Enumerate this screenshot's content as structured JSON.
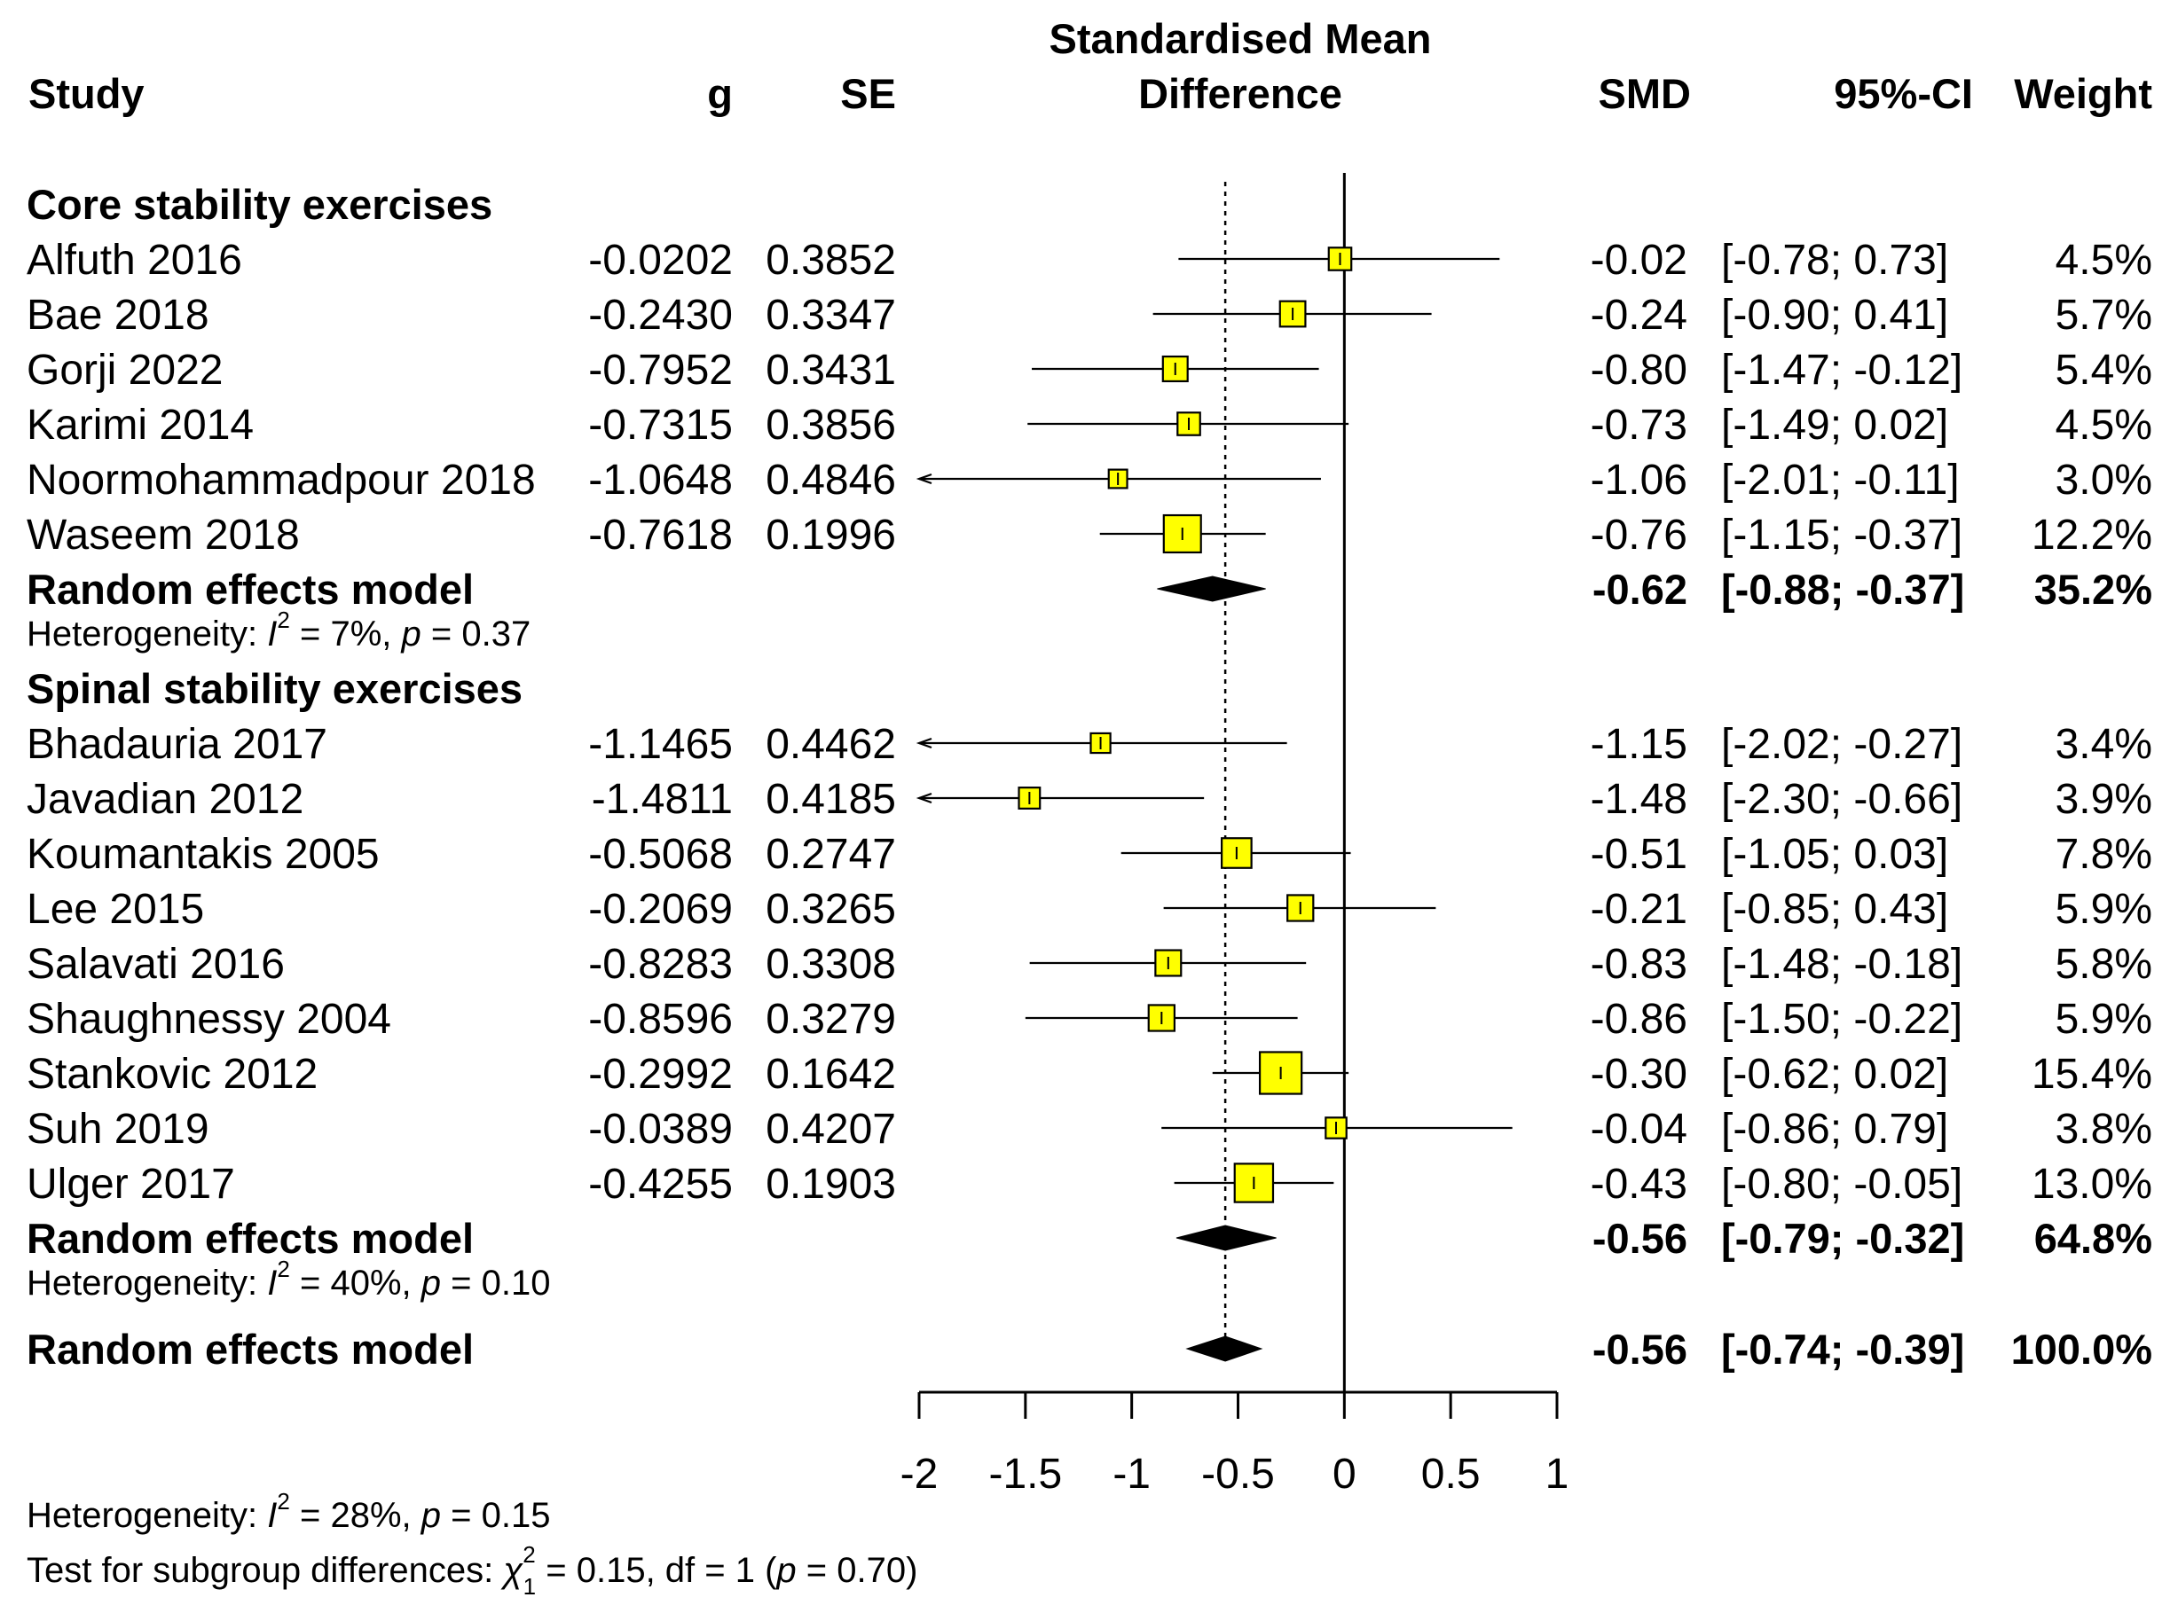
{
  "chart_data": {
    "type": "forest",
    "headers": {
      "study": "Study",
      "g": "g",
      "se": "SE",
      "plot_line1": "Standardised Mean",
      "plot_line2": "Difference",
      "smd": "SMD",
      "ci": "95%-CI",
      "weight": "Weight"
    },
    "xlim": [
      -2,
      1
    ],
    "ticks": [
      -2,
      -1.5,
      -1,
      -0.5,
      0,
      0.5,
      1
    ],
    "tick_labels": [
      "-2",
      "-1.5",
      "-1",
      "-0.5",
      "0",
      "0.5",
      "1"
    ],
    "overall_line": -0.56,
    "null_line": 0,
    "groups": [
      {
        "name": "Core stability exercises",
        "studies": [
          {
            "study": "Alfuth 2016",
            "g": "-0.0202",
            "se": "0.3852",
            "smd": "-0.02",
            "ci": "[-0.78;  0.73]",
            "weight": "4.5%",
            "est": -0.0202,
            "lo": -0.78,
            "hi": 0.73,
            "w": 4.5
          },
          {
            "study": "Bae 2018",
            "g": "-0.2430",
            "se": "0.3347",
            "smd": "-0.24",
            "ci": "[-0.90;  0.41]",
            "weight": "5.7%",
            "est": -0.243,
            "lo": -0.9,
            "hi": 0.41,
            "w": 5.7
          },
          {
            "study": "Gorji 2022",
            "g": "-0.7952",
            "se": "0.3431",
            "smd": "-0.80",
            "ci": "[-1.47; -0.12]",
            "weight": "5.4%",
            "est": -0.7952,
            "lo": -1.47,
            "hi": -0.12,
            "w": 5.4
          },
          {
            "study": "Karimi 2014",
            "g": "-0.7315",
            "se": "0.3856",
            "smd": "-0.73",
            "ci": "[-1.49;  0.02]",
            "weight": "4.5%",
            "est": -0.7315,
            "lo": -1.49,
            "hi": 0.02,
            "w": 4.5
          },
          {
            "study": "Noormohammadpour 2018",
            "g": "-1.0648",
            "se": "0.4846",
            "smd": "-1.06",
            "ci": "[-2.01; -0.11]",
            "weight": "3.0%",
            "est": -1.0648,
            "lo": -2.01,
            "hi": -0.11,
            "w": 3.0
          },
          {
            "study": "Waseem 2018",
            "g": "-0.7618",
            "se": "0.1996",
            "smd": "-0.76",
            "ci": "[-1.15; -0.37]",
            "weight": "12.2%",
            "est": -0.7618,
            "lo": -1.15,
            "hi": -0.37,
            "w": 12.2
          }
        ],
        "model": {
          "label": "Random effects model",
          "smd": "-0.62",
          "ci": "[-0.88; -0.37]",
          "weight": "35.2%",
          "est": -0.62,
          "lo": -0.88,
          "hi": -0.37
        },
        "heterogeneity": {
          "prefix": "Heterogeneity: ",
          "I": "I",
          "sup": "2",
          "mid": " = 7%, ",
          "p": "p",
          "rest": " = 0.37"
        }
      },
      {
        "name": "Spinal stability exercises",
        "studies": [
          {
            "study": "Bhadauria 2017",
            "g": "-1.1465",
            "se": "0.4462",
            "smd": "-1.15",
            "ci": "[-2.02; -0.27]",
            "weight": "3.4%",
            "est": -1.1465,
            "lo": -2.02,
            "hi": -0.27,
            "w": 3.4
          },
          {
            "study": "Javadian 2012",
            "g": "-1.4811",
            "se": "0.4185",
            "smd": "-1.48",
            "ci": "[-2.30; -0.66]",
            "weight": "3.9%",
            "est": -1.4811,
            "lo": -2.3,
            "hi": -0.66,
            "w": 3.9
          },
          {
            "study": "Koumantakis 2005",
            "g": "-0.5068",
            "se": "0.2747",
            "smd": "-0.51",
            "ci": "[-1.05;  0.03]",
            "weight": "7.8%",
            "est": -0.5068,
            "lo": -1.05,
            "hi": 0.03,
            "w": 7.8
          },
          {
            "study": "Lee 2015",
            "g": "-0.2069",
            "se": "0.3265",
            "smd": "-0.21",
            "ci": "[-0.85;  0.43]",
            "weight": "5.9%",
            "est": -0.2069,
            "lo": -0.85,
            "hi": 0.43,
            "w": 5.9
          },
          {
            "study": "Salavati 2016",
            "g": "-0.8283",
            "se": "0.3308",
            "smd": "-0.83",
            "ci": "[-1.48; -0.18]",
            "weight": "5.8%",
            "est": -0.8283,
            "lo": -1.48,
            "hi": -0.18,
            "w": 5.8
          },
          {
            "study": "Shaughnessy 2004",
            "g": "-0.8596",
            "se": "0.3279",
            "smd": "-0.86",
            "ci": "[-1.50; -0.22]",
            "weight": "5.9%",
            "est": -0.8596,
            "lo": -1.5,
            "hi": -0.22,
            "w": 5.9
          },
          {
            "study": "Stankovic 2012",
            "g": "-0.2992",
            "se": "0.1642",
            "smd": "-0.30",
            "ci": "[-0.62;  0.02]",
            "weight": "15.4%",
            "est": -0.2992,
            "lo": -0.62,
            "hi": 0.02,
            "w": 15.4
          },
          {
            "study": "Suh 2019",
            "g": "-0.0389",
            "se": "0.4207",
            "smd": "-0.04",
            "ci": "[-0.86;  0.79]",
            "weight": "3.8%",
            "est": -0.0389,
            "lo": -0.86,
            "hi": 0.79,
            "w": 3.8
          },
          {
            "study": "Ulger 2017",
            "g": "-0.4255",
            "se": "0.1903",
            "smd": "-0.43",
            "ci": "[-0.80; -0.05]",
            "weight": "13.0%",
            "est": -0.4255,
            "lo": -0.8,
            "hi": -0.05,
            "w": 13.0
          }
        ],
        "model": {
          "label": "Random effects model",
          "smd": "-0.56",
          "ci": "[-0.79; -0.32]",
          "weight": "64.8%",
          "est": -0.56,
          "lo": -0.79,
          "hi": -0.32
        },
        "heterogeneity": {
          "prefix": "Heterogeneity: ",
          "I": "I",
          "sup": "2",
          "mid": " = 40%, ",
          "p": "p",
          "rest": " = 0.10"
        }
      }
    ],
    "overall": {
      "label": "Random effects model",
      "smd": "-0.56",
      "ci": "[-0.74; -0.39]",
      "weight": "100.0%",
      "est": -0.56,
      "lo": -0.74,
      "hi": -0.39
    },
    "overall_heterogeneity": {
      "prefix": "Heterogeneity: ",
      "I": "I",
      "sup": "2",
      "mid": " = 28%, ",
      "p": "p",
      "rest": " = 0.15"
    },
    "subgroup_test": {
      "prefix": "Test for subgroup differences: ",
      "chi": "χ",
      "sup": "2",
      "sub": "1",
      "mid": " = 0.15, df = 1 (",
      "p": "p",
      "rest": " = 0.70)"
    },
    "colors": {
      "box_fill": "#ffff00",
      "line": "#000000",
      "diamond": "#000000"
    }
  }
}
